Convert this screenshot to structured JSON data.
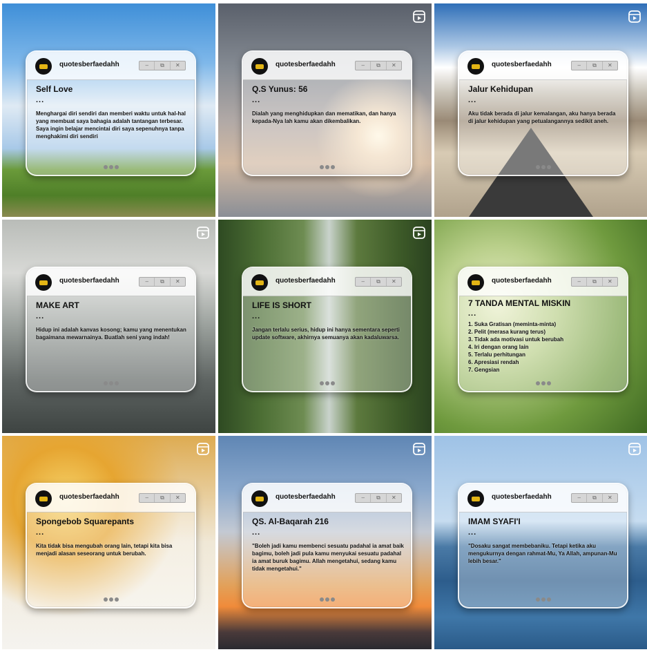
{
  "username": "quotesberfaedahh",
  "window_controls": [
    "–",
    "⧉",
    "✕"
  ],
  "posts": [
    {
      "title": "Self Love",
      "ellipsis": "...",
      "lines": [
        "Menghargai diri sendiri dan memberi waktu untuk hal-hal yang membuat saya bahagia adalah tantangan terbesar. Saya ingin belajar mencintai diri saya sepenuhnya tanpa menghakimi diri sendiri"
      ],
      "reel": false
    },
    {
      "title": "Q.S Yunus: 56",
      "ellipsis": "...",
      "lines": [
        "Dialah yang menghidupkan dan mematikan, dan hanya kepada-Nya lah kamu akan dikembalikan."
      ],
      "reel": true
    },
    {
      "title": "Jalur Kehidupan",
      "ellipsis": "...",
      "lines": [
        "Aku tidak berada di jalur kemalangan, aku hanya berada di jalur kehidupan yang petualangannya sedikit aneh."
      ],
      "reel": true
    },
    {
      "title": "MAKE ART",
      "ellipsis": "...",
      "lines": [
        "Hidup ini adalah kanvas kosong; kamu yang menentukan bagaimana mewarnainya. Buatlah seni yang indah!"
      ],
      "reel": true
    },
    {
      "title": "LIFE IS SHORT",
      "ellipsis": "...",
      "lines": [
        "Jangan terlalu serius, hidup ini hanya sementara seperti update software, akhirnya semuanya akan kadaluwarsa."
      ],
      "reel": true
    },
    {
      "title": "7 TANDA MENTAL MISKIN",
      "ellipsis": "...",
      "lines": [
        "1. Suka Gratisan (meminta-minta)",
        "2. Pelit (merasa kurang terus)",
        "3. Tidak ada motivasi untuk berubah",
        "4. Iri dengan orang lain",
        "5. Terlalu perhitungan",
        "6. Apresiasi rendah",
        "7. Gengsian"
      ],
      "reel": false
    },
    {
      "title": "Spongebob Squarepants",
      "ellipsis": "...",
      "lines": [
        "Kita tidak bisa mengubah orang lain, tetapi kita bisa menjadi alasan seseorang untuk berubah."
      ],
      "reel": true
    },
    {
      "title": "QS. Al-Baqarah 216",
      "ellipsis": "...",
      "lines": [
        "\"Boleh jadi kamu membenci sesuatu padahal ia amat baik bagimu, boleh jadi pula kamu menyukai sesuatu padahal ia amat buruk bagimu. Allah mengetahui, sedang kamu tidak mengetahui.\""
      ],
      "reel": true
    },
    {
      "title": "IMAM SYAFI'I",
      "ellipsis": "...",
      "lines": [
        "\"Dosaku sangat membebaniku. Tetapi ketika aku mengukurnya dengan rahmat-Mu, Ya Allah, ampunan-Mu lebih besar.\""
      ],
      "reel": true
    }
  ]
}
